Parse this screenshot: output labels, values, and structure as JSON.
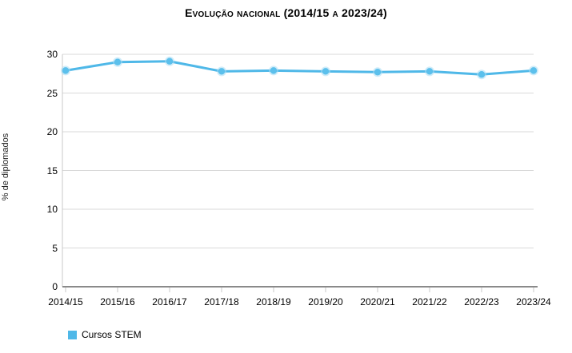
{
  "title": "Evolução nacional (2014/15 a 2023/24)",
  "chart_data": {
    "type": "line",
    "title": "Evolução nacional (2014/15 a 2023/24)",
    "xlabel": "",
    "ylabel": "% de diplomados",
    "categories": [
      "2014/15",
      "2015/16",
      "2016/17",
      "2017/18",
      "2018/19",
      "2019/20",
      "2020/21",
      "2021/22",
      "2022/23",
      "2023/24"
    ],
    "series": [
      {
        "name": "Cursos STEM",
        "values": [
          27.9,
          29.0,
          29.1,
          27.8,
          27.9,
          27.8,
          27.7,
          27.8,
          27.4,
          27.9
        ]
      }
    ],
    "ylim": [
      0,
      30
    ],
    "yticks": [
      0,
      5,
      10,
      15,
      20,
      25,
      30
    ],
    "grid": true,
    "legend_position": "bottom-left"
  },
  "legend": {
    "items": [
      {
        "label": "Cursos STEM",
        "color": "#4fb8e8"
      }
    ]
  },
  "colors": {
    "line": "#4fb8e8",
    "marker": "#5cc0ec",
    "marker_halo": "#aadcf4",
    "grid": "#d9d9d9",
    "axis_line": "#c9c9c9",
    "baseline": "#8a8a8a",
    "tick": "#c9c9c9",
    "text": "#000000",
    "background": "#ffffff"
  }
}
